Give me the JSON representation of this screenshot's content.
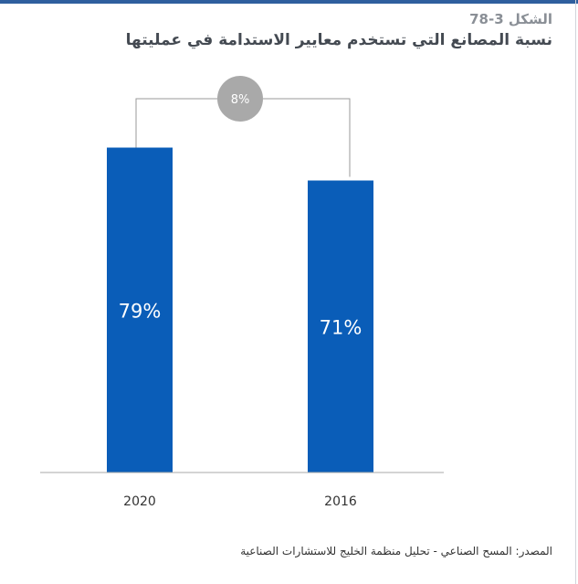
{
  "header": {
    "figure_label": "الشكل 3-78",
    "title": "نسبة المصانع التي تستخدم معايير الاستدامة في عمليتها"
  },
  "source_note": "المصدر: المسح الصناعي - تحليل منظمة الخليج للاستشارات الصناعية",
  "colors": {
    "bar": "#0a5db8",
    "bubble": "#a9a9a9",
    "connector": "#9a9a9a",
    "axis": "#aaaaaa"
  },
  "chart_data": {
    "type": "bar",
    "categories": [
      "2020",
      "2016"
    ],
    "values": [
      79,
      71
    ],
    "value_labels": [
      "79%",
      "71%"
    ],
    "ylim": [
      0,
      100
    ],
    "annotations": [
      {
        "type": "difference-bubble",
        "text": "8%",
        "between": [
          "2020",
          "2016"
        ]
      }
    ]
  }
}
